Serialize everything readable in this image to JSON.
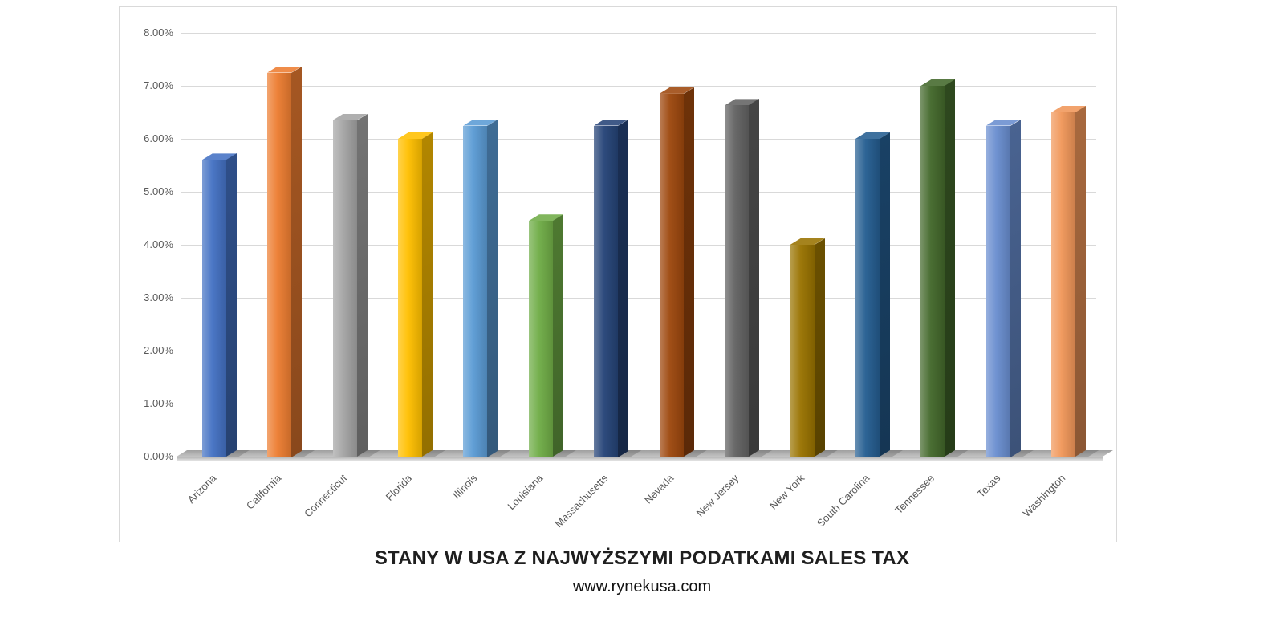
{
  "title": "STANY W USA Z NAJWYŻSZYMI PODATKAMI SALES TAX",
  "subtitle": "www.rynekusa.com",
  "chart_data": {
    "type": "bar",
    "style": "3d-column",
    "title": "STANY W USA Z NAJWYŻSZYMI PODATKAMI SALES TAX",
    "source_text": "www.rynekusa.com",
    "categories": [
      "Arizona",
      "California",
      "Connecticut",
      "Florida",
      "Illinois",
      "Louisiana",
      "Massachusetts",
      "Nevada",
      "New Jersey",
      "New York",
      "South Carolina",
      "Tennessee",
      "Texas",
      "Washington"
    ],
    "values": [
      5.6,
      7.25,
      6.35,
      6.0,
      6.25,
      4.45,
      6.25,
      6.85,
      6.63,
      4.0,
      6.0,
      7.0,
      6.25,
      6.5
    ],
    "value_unit": "%",
    "colors": [
      "#4472C4",
      "#ED7D31",
      "#A5A5A5",
      "#FFC000",
      "#5B9BD5",
      "#70AD47",
      "#264478",
      "#9E480E",
      "#636363",
      "#997300",
      "#255E91",
      "#43682B",
      "#698ED0",
      "#F1975A"
    ],
    "xlabel": "",
    "ylabel": "",
    "ylim": [
      0,
      8
    ],
    "ytick_step": 1,
    "yticks": [
      "0.00%",
      "1.00%",
      "2.00%",
      "3.00%",
      "4.00%",
      "5.00%",
      "6.00%",
      "7.00%",
      "8.00%"
    ],
    "grid": true,
    "legend": "none"
  }
}
